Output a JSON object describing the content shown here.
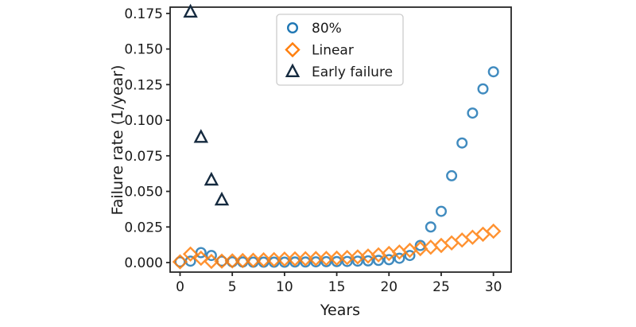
{
  "chart_data": {
    "type": "scatter",
    "title": "",
    "xlabel": "Years",
    "ylabel": "Failure rate (1/year)",
    "xlim": [
      -0.95,
      31.7
    ],
    "ylim": [
      -0.0067,
      0.1794
    ],
    "grid": false,
    "xticks": [
      0,
      5,
      10,
      15,
      20,
      25,
      30
    ],
    "xtick_labels": [
      "0",
      "5",
      "10",
      "15",
      "20",
      "25",
      "30"
    ],
    "yticks": [
      0.0,
      0.025,
      0.05,
      0.075,
      0.1,
      0.125,
      0.15,
      0.175
    ],
    "ytick_labels": [
      "0.000",
      "0.025",
      "0.050",
      "0.075",
      "0.100",
      "0.125",
      "0.150",
      "0.175"
    ],
    "legend": {
      "position": "upper-center",
      "entries": [
        "80%",
        "Linear",
        "Early failure"
      ]
    },
    "colors": {
      "blue_series": "#1f77b4",
      "orange_series": "#ff7f0e",
      "navy_series": "#152a3f",
      "spine": "#262626",
      "legend_border": "#cccccc",
      "background": "#ffffff"
    },
    "series": [
      {
        "name": "80%",
        "marker": "circle",
        "color": "#1f77b4",
        "x": [
          0,
          1,
          2,
          3,
          4,
          5,
          6,
          7,
          8,
          9,
          10,
          11,
          12,
          13,
          14,
          15,
          16,
          17,
          18,
          19,
          20,
          21,
          22,
          23,
          24,
          25,
          26,
          27,
          28,
          29,
          30
        ],
        "y": [
          0.0005,
          0.001,
          0.007,
          0.005,
          0.001,
          0.0005,
          0.0004,
          0.0003,
          0.0003,
          0.0003,
          0.0003,
          0.0004,
          0.0004,
          0.0005,
          0.0006,
          0.0007,
          0.0008,
          0.001,
          0.0012,
          0.0015,
          0.002,
          0.003,
          0.005,
          0.012,
          0.025,
          0.036,
          0.061,
          0.084,
          0.105,
          0.122,
          0.134
        ]
      },
      {
        "name": "Linear",
        "marker": "diamond",
        "color": "#ff7f0e",
        "x": [
          0,
          1,
          2,
          3,
          4,
          5,
          6,
          7,
          8,
          9,
          10,
          11,
          12,
          13,
          14,
          15,
          16,
          17,
          18,
          19,
          20,
          21,
          22,
          23,
          24,
          25,
          26,
          27,
          28,
          29,
          30
        ],
        "y": [
          0.0005,
          0.006,
          0.003,
          0.0008,
          0.001,
          0.0012,
          0.0014,
          0.0016,
          0.0019,
          0.0021,
          0.0024,
          0.0026,
          0.0027,
          0.0028,
          0.0029,
          0.0031,
          0.0035,
          0.004,
          0.0046,
          0.0054,
          0.0064,
          0.0074,
          0.0086,
          0.0098,
          0.0108,
          0.012,
          0.0138,
          0.0158,
          0.0178,
          0.0199,
          0.022
        ]
      },
      {
        "name": "Early failure",
        "marker": "triangle",
        "color": "#152a3f",
        "x": [
          1,
          2,
          3,
          4
        ],
        "y": [
          0.176,
          0.088,
          0.058,
          0.044
        ]
      }
    ]
  }
}
